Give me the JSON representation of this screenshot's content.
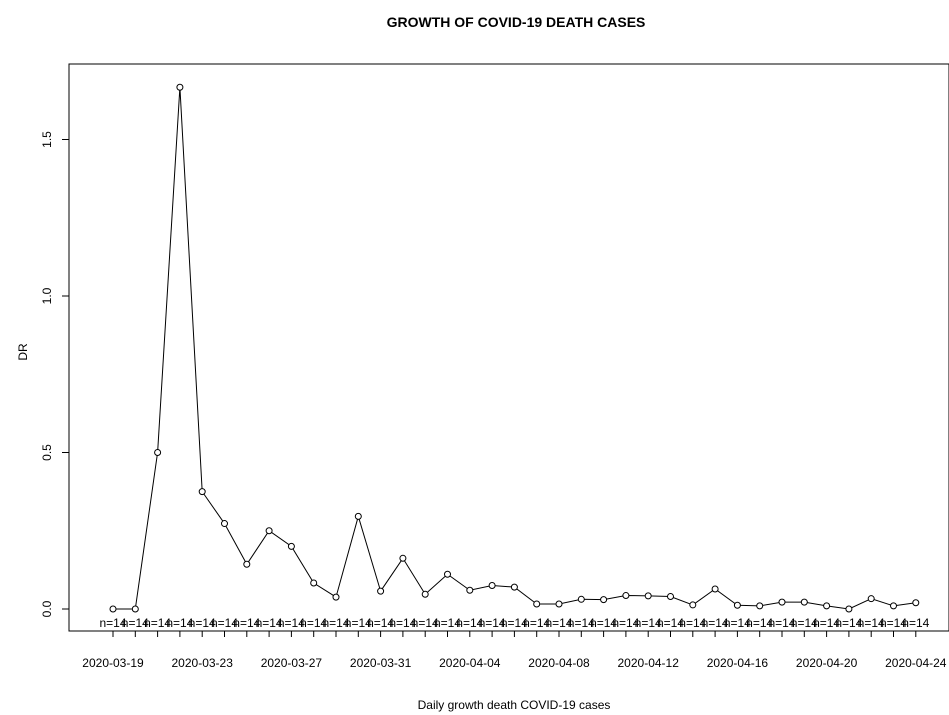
{
  "chart_data": {
    "type": "line",
    "title": "GROWTH OF COVID-19 DEATH CASES",
    "xlabel": "Daily growth death COVID-19 cases",
    "ylabel": "DR",
    "ylim": [
      0,
      1.75
    ],
    "grid": false,
    "x": [
      "2020-03-19",
      "2020-03-20",
      "2020-03-21",
      "2020-03-22",
      "2020-03-23",
      "2020-03-24",
      "2020-03-25",
      "2020-03-26",
      "2020-03-27",
      "2020-03-28",
      "2020-03-29",
      "2020-03-30",
      "2020-03-31",
      "2020-04-01",
      "2020-04-02",
      "2020-04-03",
      "2020-04-04",
      "2020-04-05",
      "2020-04-06",
      "2020-04-07",
      "2020-04-08",
      "2020-04-09",
      "2020-04-10",
      "2020-04-11",
      "2020-04-12",
      "2020-04-13",
      "2020-04-14",
      "2020-04-15",
      "2020-04-16",
      "2020-04-17",
      "2020-04-18",
      "2020-04-19",
      "2020-04-20",
      "2020-04-21",
      "2020-04-22",
      "2020-04-23",
      "2020-04-24"
    ],
    "x_tick_labels": [
      "2020-03-19",
      "2020-03-23",
      "2020-03-27",
      "2020-03-31",
      "2020-04-04",
      "2020-04-08",
      "2020-04-12",
      "2020-04-16",
      "2020-04-20",
      "2020-04-24"
    ],
    "y_tick_labels": [
      "0.0",
      "0.5",
      "1.0",
      "1.5"
    ],
    "series": [
      {
        "values": [
          0.0,
          0.0,
          0.5,
          1.667,
          0.375,
          0.273,
          0.143,
          0.25,
          0.2,
          0.083,
          0.038,
          0.296,
          0.057,
          0.162,
          0.047,
          0.111,
          0.06,
          0.075,
          0.07,
          0.016,
          0.016,
          0.031,
          0.03,
          0.043,
          0.042,
          0.04,
          0.013,
          0.064,
          0.012,
          0.01,
          0.022,
          0.022,
          0.01,
          0.0,
          0.033,
          0.01,
          0.02
        ]
      }
    ],
    "count_labels": [
      "n=14",
      "n=14",
      "n=14",
      "n=14",
      "n=14",
      "n=14",
      "n=14",
      "n=14",
      "n=14",
      "n=14",
      "n=14",
      "n=14",
      "n=14",
      "n=14",
      "n=14",
      "n=14",
      "n=14",
      "n=14",
      "n=14",
      "n=14",
      "n=14",
      "n=14",
      "n=14",
      "n=14",
      "n=14",
      "n=14",
      "n=14",
      "n=14",
      "n=14",
      "n=14",
      "n=14",
      "n=14",
      "n=14",
      "n=14",
      "n=14",
      "n=14",
      "n=14"
    ],
    "line_color": "#000000",
    "background": "#ffffff"
  }
}
